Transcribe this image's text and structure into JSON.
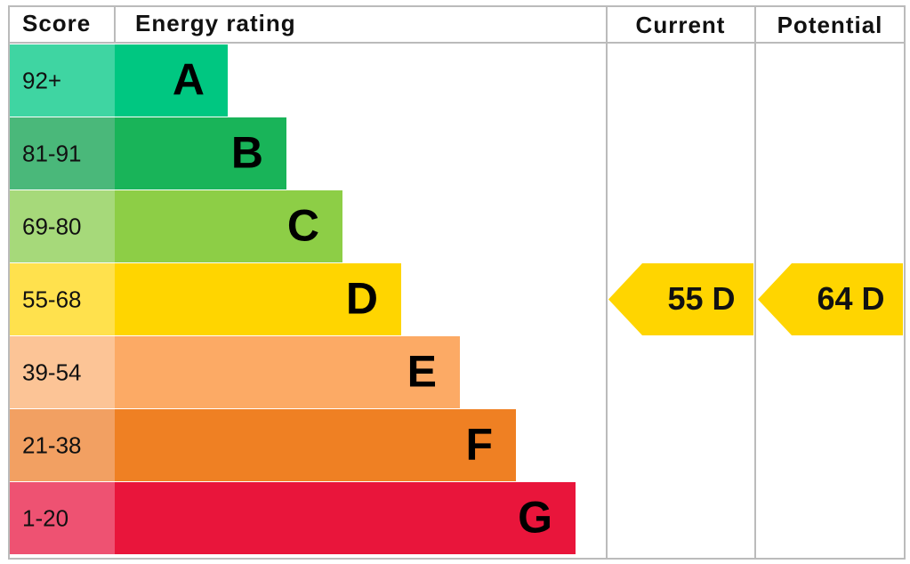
{
  "header": {
    "score": "Score",
    "rating": "Energy rating",
    "current": "Current",
    "potential": "Potential"
  },
  "bands": [
    {
      "score": "92+",
      "letter": "A",
      "color": "#00c781",
      "score_color": "#3fd5a2"
    },
    {
      "score": "81-91",
      "letter": "B",
      "color": "#19b459",
      "score_color": "#4ab87a"
    },
    {
      "score": "69-80",
      "letter": "C",
      "color": "#8dce46",
      "score_color": "#a6d97a"
    },
    {
      "score": "55-68",
      "letter": "D",
      "color": "#ffd500",
      "score_color": "#ffe14d"
    },
    {
      "score": "39-54",
      "letter": "E",
      "color": "#fcaa65",
      "score_color": "#fcc496"
    },
    {
      "score": "21-38",
      "letter": "F",
      "color": "#ef8023",
      "score_color": "#f2a062"
    },
    {
      "score": "1-20",
      "letter": "G",
      "color": "#e9153b",
      "score_color": "#ee5272"
    }
  ],
  "current": {
    "label": "55 D",
    "color": "#ffd500"
  },
  "potential": {
    "label": "64 D",
    "color": "#ffd500"
  }
}
